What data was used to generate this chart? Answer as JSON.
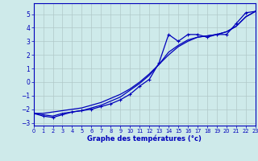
{
  "xlabel": "Graphe des températures (°c)",
  "xlim": [
    0,
    23
  ],
  "ylim": [
    -3.2,
    5.8
  ],
  "yticks": [
    -3,
    -2,
    -1,
    0,
    1,
    2,
    3,
    4,
    5
  ],
  "xticks": [
    0,
    1,
    2,
    3,
    4,
    5,
    6,
    7,
    8,
    9,
    10,
    11,
    12,
    13,
    14,
    15,
    16,
    17,
    18,
    19,
    20,
    21,
    22,
    23
  ],
  "bg_color": "#ceeaea",
  "grid_color": "#b0c8c8",
  "line_color": "#0000bb",
  "hours": [
    0,
    1,
    2,
    3,
    4,
    5,
    6,
    7,
    8,
    9,
    10,
    11,
    12,
    13,
    14,
    15,
    16,
    17,
    18,
    19,
    20,
    21,
    22,
    23
  ],
  "temps": [
    -2.3,
    -2.5,
    -2.6,
    -2.4,
    -2.2,
    -2.1,
    -2.0,
    -1.8,
    -1.6,
    -1.3,
    -0.9,
    -0.3,
    0.2,
    1.4,
    3.5,
    3.0,
    3.5,
    3.5,
    3.3,
    3.5,
    3.5,
    4.3,
    5.1,
    5.2
  ],
  "smooth": [
    -2.3,
    -2.4,
    -2.5,
    -2.3,
    -2.2,
    -2.1,
    -1.9,
    -1.7,
    -1.4,
    -1.1,
    -0.6,
    -0.1,
    0.5,
    1.3,
    2.2,
    2.7,
    3.1,
    3.3,
    3.4,
    3.5,
    3.7,
    4.1,
    4.8,
    5.2
  ],
  "trend": [
    -2.3,
    -2.3,
    -2.2,
    -2.1,
    -2.0,
    -1.9,
    -1.7,
    -1.5,
    -1.2,
    -0.9,
    -0.5,
    0.0,
    0.6,
    1.3,
    2.0,
    2.6,
    3.0,
    3.3,
    3.4,
    3.5,
    3.7,
    4.1,
    4.8,
    5.2
  ]
}
